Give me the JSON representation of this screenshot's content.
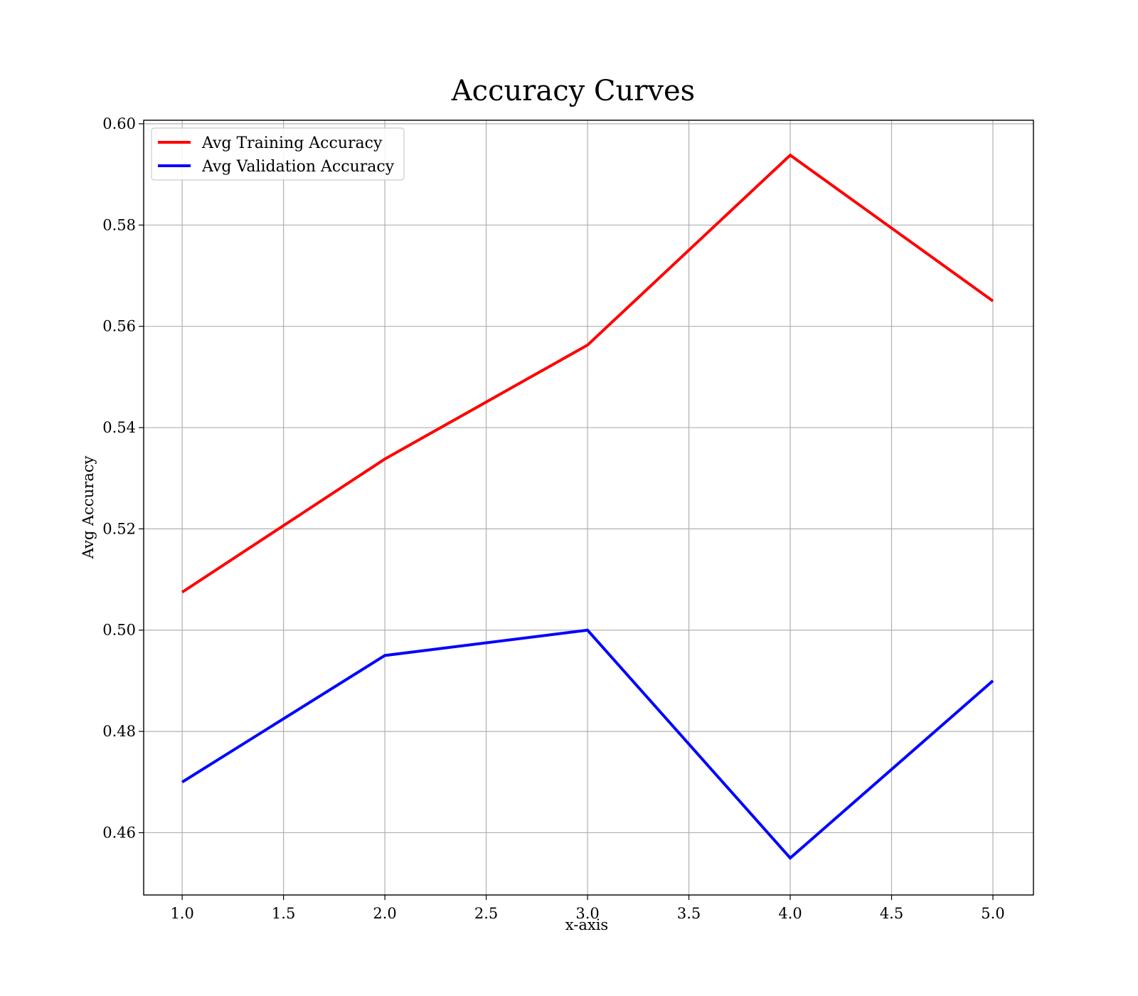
{
  "chart_data": {
    "type": "line",
    "title": "Accuracy Curves",
    "xlabel": "x-axis",
    "ylabel": "Avg Accuracy",
    "x": [
      1.0,
      2.0,
      3.0,
      4.0,
      5.0
    ],
    "xlim": [
      0.81,
      5.2
    ],
    "ylim": [
      0.4477,
      0.6007
    ],
    "xticks": [
      1.0,
      1.5,
      2.0,
      2.5,
      3.0,
      3.5,
      4.0,
      4.5,
      5.0
    ],
    "xtick_labels": [
      "1.0",
      "1.5",
      "2.0",
      "2.5",
      "3.0",
      "3.5",
      "4.0",
      "4.5",
      "5.0"
    ],
    "yticks": [
      0.46,
      0.48,
      0.5,
      0.52,
      0.54,
      0.56,
      0.58,
      0.6
    ],
    "ytick_labels": [
      "0.46",
      "0.48",
      "0.50",
      "0.52",
      "0.54",
      "0.56",
      "0.58",
      "0.60"
    ],
    "grid": true,
    "legend_position": "top-left",
    "series": [
      {
        "name": "Avg Training Accuracy",
        "color": "#ff0000",
        "values": [
          0.5075,
          0.5338,
          0.5563,
          0.5938,
          0.565
        ]
      },
      {
        "name": "Avg Validation Accuracy",
        "color": "#0000ff",
        "values": [
          0.47,
          0.495,
          0.5,
          0.455,
          0.49
        ]
      }
    ]
  }
}
